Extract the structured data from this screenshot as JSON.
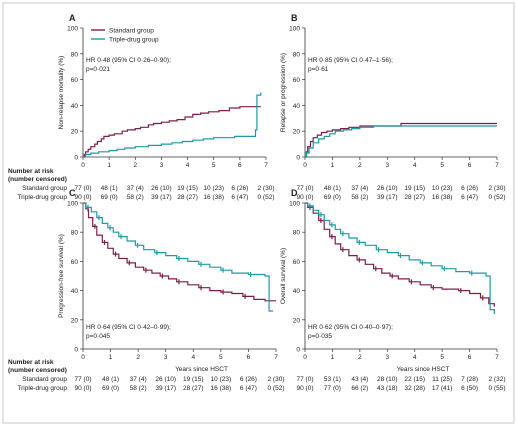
{
  "colors": {
    "standard": "#7a1f4a",
    "triple": "#1e9aa3",
    "axis": "#333333",
    "text": "#222222",
    "frame": "#c8c8c8"
  },
  "risk_table": {
    "heading": [
      "Number at risk",
      "(number censored)"
    ],
    "row_labels": [
      "Standard group",
      "Triple-drug group"
    ]
  },
  "chart_data": [
    {
      "panel": "A",
      "type": "line",
      "step": true,
      "ylabel": "Non-relapse mortality (%)",
      "xlabel": "",
      "xlim": [
        0,
        7
      ],
      "ylim": [
        0,
        100
      ],
      "xticks": [
        "0",
        "1",
        "2",
        "3",
        "4",
        "5",
        "6",
        "7"
      ],
      "yticks": [
        "0",
        "20",
        "40",
        "60",
        "80",
        "100"
      ],
      "legend": {
        "placement": "top-left",
        "entries": [
          "Standard group",
          "Triple-drug group"
        ]
      },
      "annotation": [
        "HR 0·48 (95% CI 0·26–0·90);",
        "p=0·021"
      ],
      "series": [
        {
          "name": "Standard group",
          "color": "#7a1f4a",
          "points": [
            [
              0,
              0
            ],
            [
              0.05,
              2
            ],
            [
              0.1,
              4
            ],
            [
              0.2,
              6
            ],
            [
              0.3,
              8
            ],
            [
              0.45,
              10
            ],
            [
              0.55,
              12
            ],
            [
              0.7,
              14
            ],
            [
              0.8,
              16
            ],
            [
              1.0,
              17
            ],
            [
              1.2,
              18
            ],
            [
              1.5,
              20
            ],
            [
              1.7,
              21
            ],
            [
              2.0,
              22
            ],
            [
              2.2,
              23
            ],
            [
              2.5,
              25
            ],
            [
              2.7,
              26
            ],
            [
              3.0,
              27
            ],
            [
              3.3,
              28
            ],
            [
              3.6,
              29
            ],
            [
              3.9,
              31
            ],
            [
              4.2,
              33
            ],
            [
              4.5,
              34
            ],
            [
              4.8,
              35
            ],
            [
              5.2,
              36
            ],
            [
              5.6,
              38
            ],
            [
              6.0,
              39
            ],
            [
              6.8,
              39
            ]
          ]
        },
        {
          "name": "Triple-drug group",
          "color": "#1e9aa3",
          "points": [
            [
              0,
              0
            ],
            [
              0.1,
              2
            ],
            [
              0.3,
              3
            ],
            [
              0.6,
              4
            ],
            [
              1.0,
              5
            ],
            [
              1.3,
              6
            ],
            [
              1.6,
              7
            ],
            [
              2.0,
              8
            ],
            [
              2.5,
              9
            ],
            [
              3.0,
              10
            ],
            [
              3.4,
              11
            ],
            [
              3.8,
              12
            ],
            [
              4.2,
              13
            ],
            [
              4.6,
              14
            ],
            [
              5.0,
              15
            ],
            [
              5.8,
              16
            ],
            [
              6.6,
              21
            ],
            [
              6.65,
              48
            ],
            [
              6.8,
              50
            ]
          ]
        }
      ],
      "risk": {
        "standard": [
          "77 (0)",
          "48 (1)",
          "37 (4)",
          "26 (10)",
          "19 (15)",
          "10 (23)",
          "6 (26)",
          "2 (30)"
        ],
        "triple": [
          "90 (0)",
          "69 (0)",
          "58 (2)",
          "39 (17)",
          "28 (27)",
          "16 (38)",
          "6 (47)",
          "0 (52)"
        ]
      }
    },
    {
      "panel": "B",
      "type": "line",
      "step": true,
      "ylabel": "Relapse or progression (%)",
      "xlabel": "",
      "xlim": [
        0,
        7
      ],
      "ylim": [
        0,
        100
      ],
      "xticks": [
        "0",
        "1",
        "2",
        "3",
        "4",
        "5",
        "6",
        "7"
      ],
      "yticks": [
        "0",
        "20",
        "40",
        "60",
        "80",
        "100"
      ],
      "annotation": [
        "HR 0·85 (95% CI 0·47–1·56);",
        "p=0·61"
      ],
      "series": [
        {
          "name": "Standard group",
          "color": "#7a1f4a",
          "points": [
            [
              0,
              0
            ],
            [
              0.05,
              4
            ],
            [
              0.1,
              8
            ],
            [
              0.2,
              12
            ],
            [
              0.3,
              15
            ],
            [
              0.45,
              17
            ],
            [
              0.6,
              19
            ],
            [
              0.8,
              20
            ],
            [
              1.0,
              21
            ],
            [
              1.3,
              22
            ],
            [
              1.6,
              23
            ],
            [
              2.0,
              24
            ],
            [
              3.5,
              26
            ],
            [
              7.0,
              26
            ]
          ]
        },
        {
          "name": "Triple-drug group",
          "color": "#1e9aa3",
          "points": [
            [
              0,
              0
            ],
            [
              0.05,
              3
            ],
            [
              0.15,
              7
            ],
            [
              0.3,
              11
            ],
            [
              0.5,
              14
            ],
            [
              0.7,
              16
            ],
            [
              0.9,
              18
            ],
            [
              1.1,
              20
            ],
            [
              1.4,
              21
            ],
            [
              1.7,
              22
            ],
            [
              2.0,
              23
            ],
            [
              2.5,
              24
            ],
            [
              7.0,
              24
            ]
          ]
        }
      ],
      "risk": {
        "standard": [
          "77 (0)",
          "48 (1)",
          "37 (4)",
          "26 (10)",
          "19 (15)",
          "10 (23)",
          "6 (26)",
          "2 (30)"
        ],
        "triple": [
          "90 (0)",
          "69 (0)",
          "58 (2)",
          "39 (17)",
          "28 (27)",
          "16 (38)",
          "6 (47)",
          "0 (52)"
        ]
      }
    },
    {
      "panel": "C",
      "type": "line",
      "step": true,
      "ylabel": "Progression-free survival (%)",
      "xlabel": "Years since HSCT",
      "xlim": [
        0,
        7
      ],
      "ylim": [
        0,
        100
      ],
      "xticks": [
        "0",
        "1",
        "2",
        "3",
        "4",
        "5",
        "6",
        "7"
      ],
      "yticks": [
        "0",
        "20",
        "40",
        "60",
        "80",
        "100"
      ],
      "annotation": [
        "HR 0·64 (95% CI 0·42–0·99);",
        "p=0·045"
      ],
      "series": [
        {
          "name": "Standard group",
          "color": "#7a1f4a",
          "points": [
            [
              0,
              100
            ],
            [
              0.1,
              96
            ],
            [
              0.2,
              90
            ],
            [
              0.35,
              84
            ],
            [
              0.5,
              78
            ],
            [
              0.7,
              73
            ],
            [
              0.9,
              69
            ],
            [
              1.1,
              65
            ],
            [
              1.3,
              62
            ],
            [
              1.6,
              59
            ],
            [
              1.9,
              56
            ],
            [
              2.2,
              54
            ],
            [
              2.5,
              52
            ],
            [
              2.8,
              50
            ],
            [
              3.1,
              48
            ],
            [
              3.4,
              46
            ],
            [
              3.8,
              44
            ],
            [
              4.2,
              42
            ],
            [
              4.6,
              40
            ],
            [
              5.0,
              39
            ],
            [
              5.4,
              38
            ],
            [
              5.8,
              36
            ],
            [
              6.2,
              34
            ],
            [
              6.6,
              33
            ],
            [
              7.0,
              33
            ]
          ]
        },
        {
          "name": "Triple-drug group",
          "color": "#1e9aa3",
          "points": [
            [
              0,
              100
            ],
            [
              0.1,
              97
            ],
            [
              0.3,
              94
            ],
            [
              0.5,
              90
            ],
            [
              0.7,
              86
            ],
            [
              0.9,
              83
            ],
            [
              1.1,
              80
            ],
            [
              1.3,
              77
            ],
            [
              1.6,
              74
            ],
            [
              1.9,
              71
            ],
            [
              2.2,
              68
            ],
            [
              2.6,
              66
            ],
            [
              3.0,
              64
            ],
            [
              3.4,
              62
            ],
            [
              3.8,
              60
            ],
            [
              4.2,
              58
            ],
            [
              4.6,
              56
            ],
            [
              5.0,
              54
            ],
            [
              5.4,
              52
            ],
            [
              6.0,
              51
            ],
            [
              6.6,
              50
            ],
            [
              6.75,
              26
            ],
            [
              6.9,
              26
            ]
          ]
        }
      ],
      "risk": {
        "standard": [
          "77 (0)",
          "48 (1)",
          "37 (4)",
          "26 (10)",
          "19 (15)",
          "10 (23)",
          "6 (26)",
          "2 (30)"
        ],
        "triple": [
          "90 (0)",
          "69 (0)",
          "58 (2)",
          "39 (17)",
          "28 (27)",
          "16 (38)",
          "6 (47)",
          "0 (52)"
        ]
      }
    },
    {
      "panel": "D",
      "type": "line",
      "step": true,
      "ylabel": "Overall survival (%)",
      "xlabel": "Years since HSCT",
      "xlim": [
        0,
        7
      ],
      "ylim": [
        0,
        100
      ],
      "xticks": [
        "0",
        "1",
        "2",
        "3",
        "4",
        "5",
        "6",
        "7"
      ],
      "yticks": [
        "0",
        "20",
        "40",
        "60",
        "80",
        "100"
      ],
      "annotation": [
        "HR 0·62 (95% CI 0·40–0·97);",
        "p=0·035"
      ],
      "series": [
        {
          "name": "Standard group",
          "color": "#7a1f4a",
          "points": [
            [
              0,
              100
            ],
            [
              0.1,
              97
            ],
            [
              0.3,
              93
            ],
            [
              0.5,
              88
            ],
            [
              0.7,
              82
            ],
            [
              0.9,
              77
            ],
            [
              1.1,
              72
            ],
            [
              1.3,
              68
            ],
            [
              1.6,
              64
            ],
            [
              1.9,
              61
            ],
            [
              2.2,
              58
            ],
            [
              2.5,
              55
            ],
            [
              2.8,
              52
            ],
            [
              3.1,
              50
            ],
            [
              3.4,
              48
            ],
            [
              3.8,
              46
            ],
            [
              4.2,
              44
            ],
            [
              4.6,
              42
            ],
            [
              5.0,
              41
            ],
            [
              5.6,
              40
            ],
            [
              6.0,
              38
            ],
            [
              6.4,
              35
            ],
            [
              6.7,
              31
            ],
            [
              6.9,
              29
            ]
          ]
        },
        {
          "name": "Triple-drug group",
          "color": "#1e9aa3",
          "points": [
            [
              0,
              100
            ],
            [
              0.1,
              98
            ],
            [
              0.3,
              95
            ],
            [
              0.5,
              92
            ],
            [
              0.7,
              88
            ],
            [
              0.9,
              85
            ],
            [
              1.1,
              82
            ],
            [
              1.3,
              79
            ],
            [
              1.6,
              76
            ],
            [
              1.9,
              73
            ],
            [
              2.2,
              71
            ],
            [
              2.6,
              68
            ],
            [
              3.0,
              66
            ],
            [
              3.4,
              64
            ],
            [
              3.8,
              61
            ],
            [
              4.2,
              59
            ],
            [
              4.6,
              57
            ],
            [
              5.0,
              55
            ],
            [
              5.5,
              53
            ],
            [
              6.0,
              52
            ],
            [
              6.6,
              50
            ],
            [
              6.75,
              27
            ],
            [
              6.9,
              24
            ]
          ]
        }
      ],
      "risk": {
        "standard": [
          "77 (0)",
          "53 (1)",
          "43 (4)",
          "28 (10)",
          "22 (15)",
          "11 (25)",
          "7 (28)",
          "2 (32)"
        ],
        "triple": [
          "90 (0)",
          "77 (0)",
          "66 (2)",
          "43 (18)",
          "32 (28)",
          "17 (41)",
          "6 (50)",
          "0 (55)"
        ]
      }
    }
  ]
}
